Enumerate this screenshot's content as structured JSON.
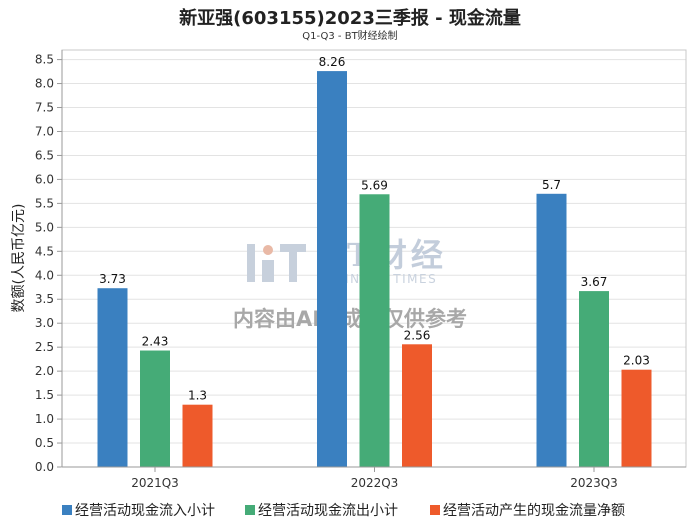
{
  "chart_data": {
    "type": "bar",
    "title": "新亚强(603155)2023三季报 - 现金流量",
    "subtitle": "Q1-Q3 - BT财经绘制",
    "ylabel": "数额(人民币亿元)",
    "categories": [
      "2021Q3",
      "2022Q3",
      "2023Q3"
    ],
    "series": [
      {
        "name": "经营活动现金流入小计",
        "color": "#3A80C0",
        "values": [
          3.73,
          8.26,
          5.7
        ]
      },
      {
        "name": "经营活动现金流出小计",
        "color": "#45AB77",
        "values": [
          2.43,
          5.69,
          3.67
        ]
      },
      {
        "name": "经营活动产生的现金流量净额",
        "color": "#EE5A2B",
        "values": [
          1.3,
          2.56,
          2.03
        ]
      }
    ],
    "yticks": [
      "0.0",
      "0.5",
      "1.0",
      "1.5",
      "2.0",
      "2.5",
      "3.0",
      "3.5",
      "4.0",
      "4.5",
      "5.0",
      "5.5",
      "6.0",
      "6.5",
      "7.0",
      "7.5",
      "8.0",
      "8.5"
    ],
    "ylim": [
      0,
      8.7
    ],
    "grid": true,
    "legend_position": "bottom"
  },
  "watermark": {
    "logo_text": "BT财经",
    "logo_subtext": "BUSINESS TIMES",
    "notice": "内容由AI生成，仅供参考"
  }
}
